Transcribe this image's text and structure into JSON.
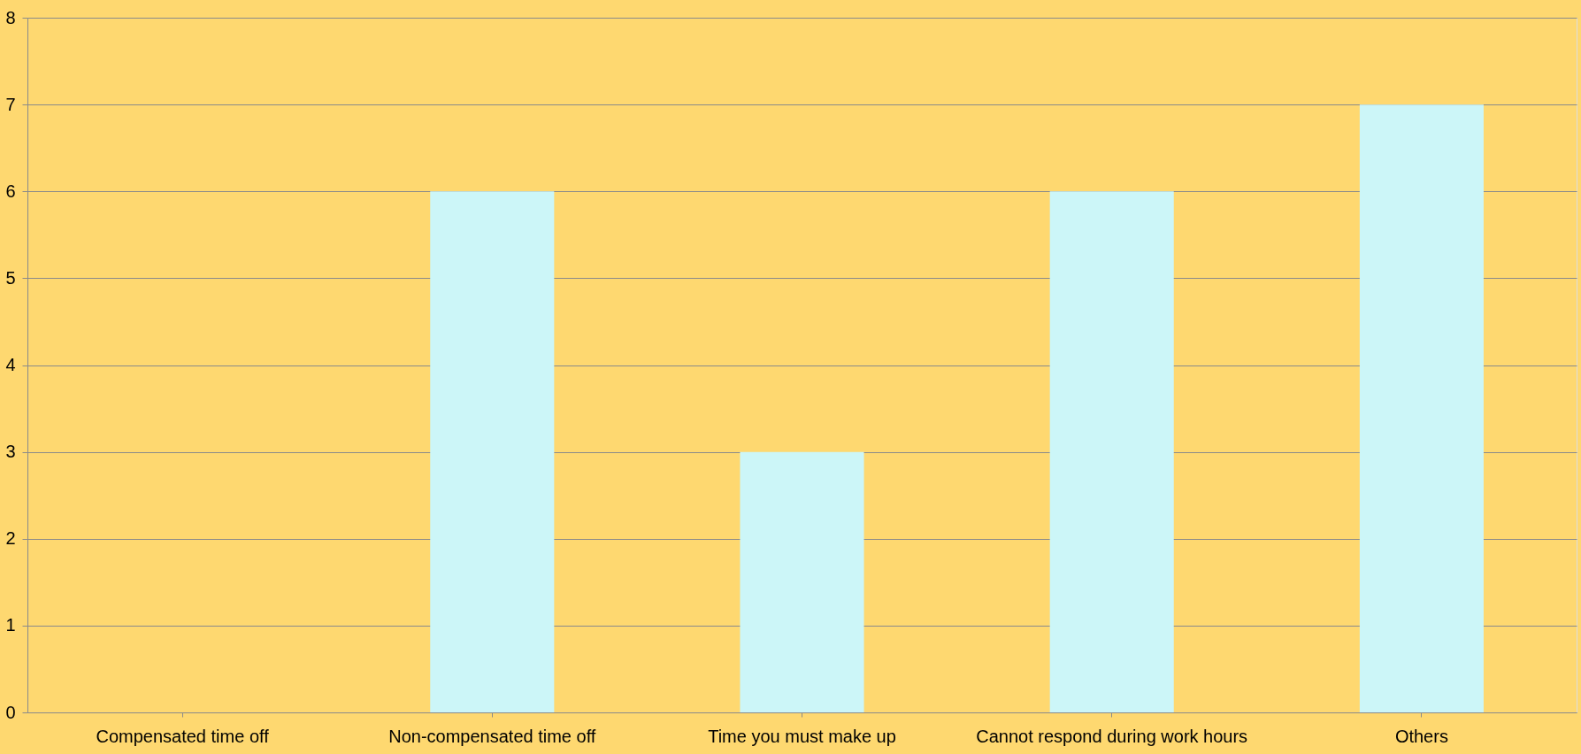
{
  "chart_data": {
    "type": "bar",
    "categories": [
      "Compensated time off",
      "Non-compensated time off",
      "Time you must make up",
      "Cannot respond during work hours",
      "Others"
    ],
    "values": [
      0,
      6,
      3,
      6,
      7
    ],
    "color": "#ccf6f8",
    "ylim": [
      0,
      8
    ],
    "yticks": [
      0,
      1,
      2,
      3,
      4,
      5,
      6,
      7,
      8
    ],
    "grid": "y"
  }
}
